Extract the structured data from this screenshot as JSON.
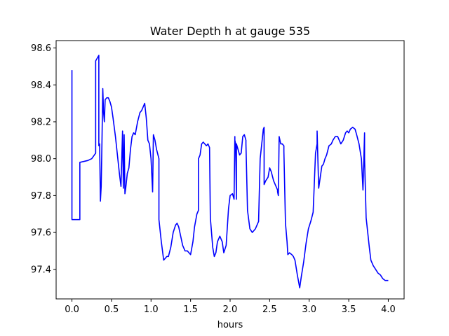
{
  "chart_data": {
    "type": "line",
    "title": "Water Depth h at gauge 535",
    "xlabel": "hours",
    "ylabel": "",
    "xlim": [
      -0.2,
      4.2
    ],
    "ylim": [
      97.24,
      98.64
    ],
    "grid": false,
    "x_ticks": [
      "0.0",
      "0.5",
      "1.0",
      "1.5",
      "2.0",
      "2.5",
      "3.0",
      "3.5",
      "4.0"
    ],
    "x_tick_values": [
      0.0,
      0.5,
      1.0,
      1.5,
      2.0,
      2.5,
      3.0,
      3.5,
      4.0
    ],
    "y_ticks": [
      "97.4",
      "97.6",
      "97.8",
      "98.0",
      "98.2",
      "98.4",
      "98.6"
    ],
    "y_tick_values": [
      97.4,
      97.6,
      97.8,
      98.0,
      98.2,
      98.4,
      98.6
    ],
    "series": [
      {
        "color": "#0000ff",
        "x": [
          0.0,
          0.0,
          0.0,
          0.1,
          0.1,
          0.2,
          0.25,
          0.3,
          0.3,
          0.34,
          0.34,
          0.35,
          0.36,
          0.37,
          0.38,
          0.39,
          0.4,
          0.41,
          0.42,
          0.44,
          0.46,
          0.48,
          0.5,
          0.52,
          0.55,
          0.58,
          0.6,
          0.62,
          0.64,
          0.65,
          0.66,
          0.67,
          0.68,
          0.7,
          0.72,
          0.74,
          0.76,
          0.78,
          0.8,
          0.83,
          0.86,
          0.88,
          0.9,
          0.92,
          0.94,
          0.96,
          0.98,
          1.0,
          1.02,
          1.03,
          1.05,
          1.07,
          1.1,
          1.1,
          1.13,
          1.16,
          1.2,
          1.22,
          1.25,
          1.28,
          1.31,
          1.33,
          1.35,
          1.38,
          1.4,
          1.43,
          1.46,
          1.5,
          1.53,
          1.55,
          1.58,
          1.6,
          1.6,
          1.62,
          1.64,
          1.66,
          1.68,
          1.7,
          1.72,
          1.74,
          1.75,
          1.78,
          1.8,
          1.82,
          1.84,
          1.87,
          1.9,
          1.92,
          1.95,
          1.98,
          2.0,
          2.03,
          2.05,
          2.06,
          2.06,
          2.07,
          2.08,
          2.08,
          2.1,
          2.12,
          2.14,
          2.16,
          2.18,
          2.2,
          2.2,
          2.22,
          2.25,
          2.28,
          2.32,
          2.35,
          2.36,
          2.38,
          2.4,
          2.42,
          2.43,
          2.43,
          2.45,
          2.48,
          2.5,
          2.52,
          2.55,
          2.58,
          2.6,
          2.6,
          2.61,
          2.62,
          2.64,
          2.66,
          2.68,
          2.68,
          2.7,
          2.72,
          2.73,
          2.75,
          2.78,
          2.8,
          2.82,
          2.85,
          2.88,
          2.9,
          2.93,
          2.96,
          2.99,
          3.02,
          3.05,
          3.08,
          3.1,
          3.1,
          3.12,
          3.14,
          3.16,
          3.18,
          3.2,
          3.22,
          3.25,
          3.28,
          3.3,
          3.33,
          3.36,
          3.38,
          3.4,
          3.43,
          3.46,
          3.48,
          3.5,
          3.52,
          3.55,
          3.58,
          3.6,
          3.63,
          3.66,
          3.68,
          3.7,
          3.7,
          3.72,
          3.74,
          3.76,
          3.78,
          3.81,
          3.84,
          3.87,
          3.9,
          3.93,
          3.96,
          4.0
        ],
        "y": [
          98.48,
          98.0,
          97.67,
          97.67,
          97.98,
          97.99,
          98.0,
          98.03,
          98.53,
          98.56,
          98.07,
          98.08,
          97.77,
          97.85,
          98.1,
          98.38,
          98.25,
          98.2,
          98.32,
          98.33,
          98.33,
          98.31,
          98.28,
          98.22,
          98.12,
          98.0,
          97.92,
          97.85,
          98.15,
          97.84,
          98.13,
          97.81,
          97.84,
          97.92,
          97.95,
          98.05,
          98.12,
          98.14,
          98.13,
          98.2,
          98.25,
          98.26,
          98.28,
          98.3,
          98.22,
          98.1,
          98.08,
          98.0,
          97.82,
          98.13,
          98.1,
          98.05,
          98.0,
          97.67,
          97.55,
          97.45,
          97.47,
          97.47,
          97.52,
          97.6,
          97.64,
          97.65,
          97.63,
          97.57,
          97.53,
          97.5,
          97.5,
          97.48,
          97.55,
          97.63,
          97.7,
          97.72,
          98.0,
          98.02,
          98.08,
          98.09,
          98.08,
          98.07,
          98.08,
          98.06,
          97.68,
          97.52,
          97.47,
          97.49,
          97.55,
          97.58,
          97.55,
          97.49,
          97.53,
          97.73,
          97.8,
          97.81,
          97.78,
          98.12,
          98.1,
          98.08,
          97.78,
          98.08,
          98.05,
          98.02,
          98.03,
          98.12,
          98.13,
          98.1,
          98.08,
          97.72,
          97.62,
          97.6,
          97.62,
          97.65,
          97.66,
          98.0,
          98.08,
          98.16,
          98.17,
          97.86,
          97.88,
          97.9,
          97.95,
          97.93,
          97.88,
          97.85,
          97.83,
          97.82,
          97.8,
          98.12,
          98.08,
          98.08,
          98.07,
          98.04,
          97.65,
          97.55,
          97.48,
          97.49,
          97.48,
          97.47,
          97.45,
          97.37,
          97.3,
          97.36,
          97.44,
          97.54,
          97.62,
          97.66,
          97.71,
          98.03,
          98.08,
          98.15,
          97.84,
          97.9,
          97.96,
          97.97,
          98.0,
          98.02,
          98.07,
          98.08,
          98.1,
          98.12,
          98.12,
          98.1,
          98.08,
          98.1,
          98.14,
          98.15,
          98.14,
          98.16,
          98.17,
          98.16,
          98.13,
          98.08,
          98.0,
          97.83,
          98.14,
          98.0,
          97.68,
          97.6,
          97.52,
          97.45,
          97.42,
          97.4,
          97.38,
          97.37,
          97.35,
          97.34,
          97.34
        ]
      }
    ]
  }
}
